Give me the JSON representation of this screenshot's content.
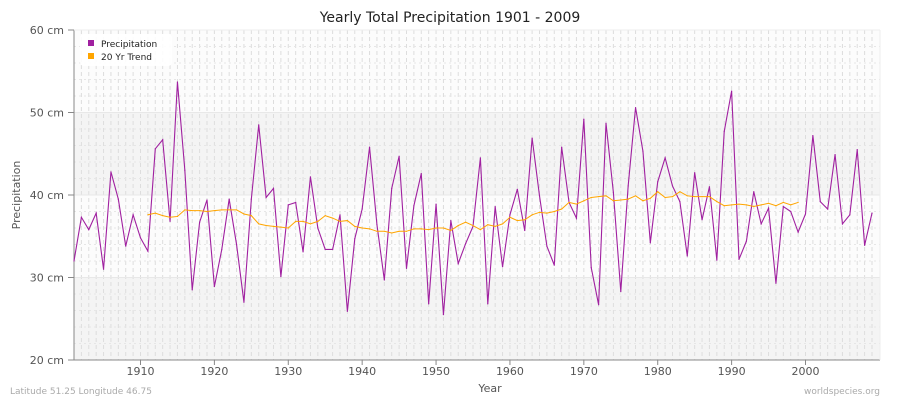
{
  "chart_data": {
    "type": "line",
    "title": "Yearly Total Precipitation 1901 - 2009",
    "xlabel": "Year",
    "ylabel": "Precipitation",
    "xlim": [
      1901,
      2009
    ],
    "ylim": [
      20,
      60
    ],
    "x_ticks": [
      1910,
      1920,
      1930,
      1940,
      1950,
      1960,
      1970,
      1980,
      1990,
      2000
    ],
    "y_ticks": [
      20,
      30,
      40,
      50,
      60
    ],
    "y_tick_labels": [
      "20 cm",
      "30 cm",
      "40 cm",
      "50 cm",
      "60 cm"
    ],
    "grid": true,
    "legend_placement": "top-left",
    "series": [
      {
        "name": "Precipitation",
        "color": "#a020a0",
        "start_year": 1901,
        "values": [
          32,
          37.3,
          35.8,
          37.8,
          31,
          42.8,
          39.5,
          33.8,
          37.6,
          34.8,
          33.2,
          45.6,
          46.7,
          36.8,
          53.7,
          43,
          28.5,
          36.7,
          39.4,
          28.9,
          33.4,
          39.5,
          34,
          27,
          39.5,
          48.5,
          39.7,
          40.8,
          30.1,
          38.8,
          39.1,
          33.1,
          42.2,
          36,
          33.4,
          33.4,
          37.6,
          25.9,
          34.7,
          38.3,
          45.8,
          36.4,
          29.7,
          40.8,
          44.7,
          31.1,
          38.7,
          42.6,
          26.8,
          38.9,
          25.5,
          36.9,
          31.7,
          34.1,
          36.2,
          44.5,
          26.8,
          38.6,
          31.3,
          37.6,
          40.7,
          35.7,
          46.9,
          39.9,
          33.8,
          31.5,
          45.8,
          39.1,
          37.2,
          49.2,
          31.2,
          26.7,
          48.7,
          40.3,
          28.3,
          41.1,
          50.6,
          45.3,
          34.2,
          41.6,
          44.5,
          41.1,
          39.2,
          32.6,
          42.7,
          37,
          41,
          32.1,
          47.7,
          52.6,
          32.2,
          34.4,
          40.4,
          36.5,
          38.4,
          29.3,
          38.6,
          38,
          35.5,
          37.7,
          47.2,
          39.2,
          38.3,
          44.9,
          36.5,
          37.6,
          45.5,
          33.9,
          37.8
        ]
      },
      {
        "name": "20 Yr Trend",
        "color": "#ffa500",
        "start_year": 1911,
        "values": [
          37.6,
          37.8,
          37.5,
          37.3,
          37.4,
          38.2,
          38.1,
          38.1,
          38.0,
          38.1,
          38.2,
          38.2,
          38.2,
          37.7,
          37.5,
          36.5,
          36.3,
          36.2,
          36.1,
          36.0,
          36.8,
          36.8,
          36.5,
          36.8,
          37.5,
          37.2,
          36.8,
          36.9,
          36.2,
          36.0,
          35.9,
          35.6,
          35.6,
          35.4,
          35.6,
          35.6,
          35.9,
          35.9,
          35.8,
          36.0,
          36.0,
          35.7,
          36.3,
          36.7,
          36.3,
          35.8,
          36.4,
          36.2,
          36.5,
          37.3,
          36.9,
          37.0,
          37.6,
          37.9,
          37.8,
          38.0,
          38.3,
          39.1,
          38.9,
          39.3,
          39.7,
          39.8,
          39.9,
          39.3,
          39.4,
          39.5,
          39.9,
          39.3,
          39.6,
          40.4,
          39.7,
          39.8,
          40.4,
          39.9,
          39.8,
          39.8,
          39.8,
          39.2,
          38.7,
          38.8,
          38.9,
          38.8,
          38.6,
          38.8,
          39.0,
          38.7,
          39.1,
          38.8,
          39.1
        ]
      }
    ]
  },
  "footer": {
    "location": "Latitude 51.25 Longitude 46.75",
    "source": "worldspecies.org"
  }
}
